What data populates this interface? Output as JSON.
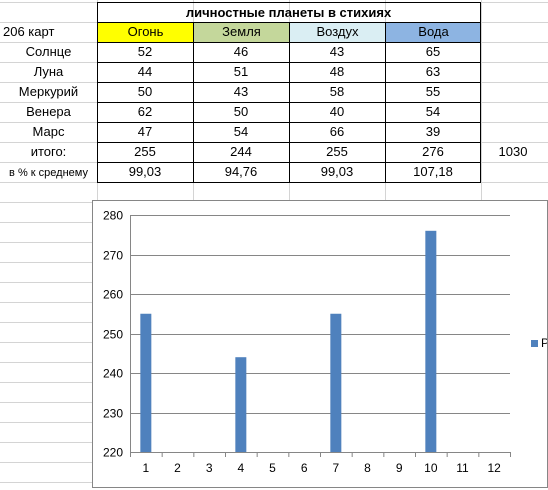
{
  "sheet": {
    "title": "личностные планеты в стихиях",
    "corner_label": "206 карт",
    "headers": [
      {
        "label": "Огонь",
        "color": "#ffff00"
      },
      {
        "label": "Земля",
        "color": "#c4d79b"
      },
      {
        "label": "Воздух",
        "color": "#daeef3"
      },
      {
        "label": "Вода",
        "color": "#8db4e2"
      }
    ],
    "rows": [
      {
        "label": "Солнце",
        "values": [
          "52",
          "46",
          "43",
          "65"
        ]
      },
      {
        "label": "Луна",
        "values": [
          "44",
          "51",
          "48",
          "63"
        ]
      },
      {
        "label": "Меркурий",
        "values": [
          "50",
          "43",
          "58",
          "55"
        ]
      },
      {
        "label": "Венера",
        "values": [
          "62",
          "50",
          "40",
          "54"
        ]
      },
      {
        "label": "Марс",
        "values": [
          "47",
          "54",
          "66",
          "39"
        ]
      }
    ],
    "total_row": {
      "label": "итого:",
      "values": [
        "255",
        "244",
        "255",
        "276"
      ],
      "grand_total": "1030"
    },
    "percent_row": {
      "label": "в % к среднему",
      "values": [
        "99,03",
        "94,76",
        "99,03",
        "107,18"
      ]
    }
  },
  "chart_data": {
    "type": "bar",
    "categories": [
      "1",
      "2",
      "3",
      "4",
      "5",
      "6",
      "7",
      "8",
      "9",
      "10",
      "11",
      "12"
    ],
    "series": [
      {
        "values": [
          255,
          null,
          null,
          244,
          null,
          null,
          255,
          null,
          null,
          276,
          null,
          null
        ],
        "color": "#4f81bd"
      }
    ],
    "title": "",
    "xlabel": "",
    "ylabel": "",
    "ylim": [
      220,
      280
    ],
    "yticks": [
      220,
      230,
      240,
      250,
      260,
      270,
      280
    ],
    "grid": true,
    "legend": {
      "placement": "right",
      "text": "Р"
    }
  }
}
